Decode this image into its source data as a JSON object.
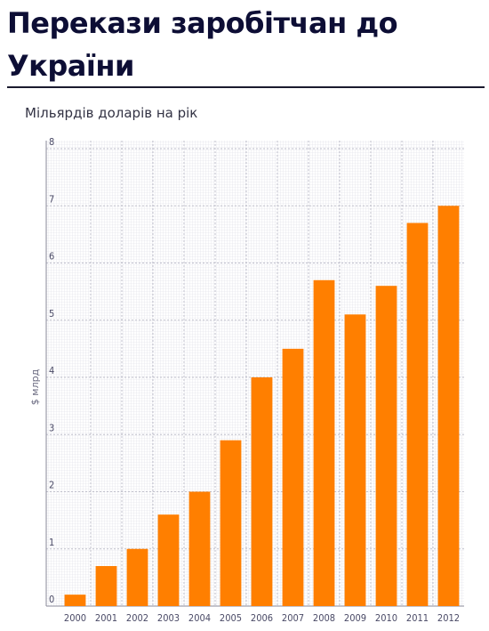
{
  "header": {
    "title": "Перекази заробітчан до України",
    "subtitle": "Мільярдів доларів на рік"
  },
  "colors": {
    "bar": "#ff7f00",
    "title": "#0d0e35"
  },
  "chart_data": {
    "type": "bar",
    "title": "Перекази заробітчан до України",
    "subtitle": "Мільярдів доларів на рік",
    "xlabel": "",
    "ylabel": "$ млрд",
    "categories": [
      "2000",
      "2001",
      "2002",
      "2003",
      "2004",
      "2005",
      "2006",
      "2007",
      "2008",
      "2009",
      "2010",
      "2011",
      "2012"
    ],
    "values": [
      0.2,
      0.7,
      1.0,
      1.6,
      2.0,
      2.9,
      4.0,
      4.5,
      5.7,
      5.1,
      5.6,
      6.7,
      7.0
    ],
    "ylim": [
      0,
      8
    ],
    "yticks": [
      "0",
      "1",
      "2",
      "3",
      "4",
      "5",
      "6",
      "7",
      "8"
    ],
    "grid": true,
    "legend": "none"
  }
}
